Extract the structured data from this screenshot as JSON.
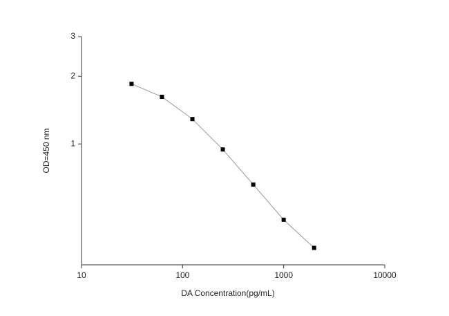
{
  "chart_data": {
    "type": "line",
    "x_label": "DA  Concentration(pg/mL)",
    "y_label": "OD=450 nm",
    "x": [
      31.25,
      62.5,
      125,
      250,
      500,
      1000,
      2000
    ],
    "series": [
      {
        "color": "#000000",
        "line_color": "#999999",
        "values": [
          1.85,
          1.62,
          1.29,
          0.945,
          0.66,
          0.46,
          0.345
        ]
      }
    ],
    "xlim": [
      10,
      10000
    ],
    "xticks": [
      10,
      100,
      1000,
      10000
    ],
    "x_log": true,
    "ylim": [
      0.29,
      3
    ],
    "yticks": [
      1,
      2,
      3
    ],
    "y_log": true
  }
}
